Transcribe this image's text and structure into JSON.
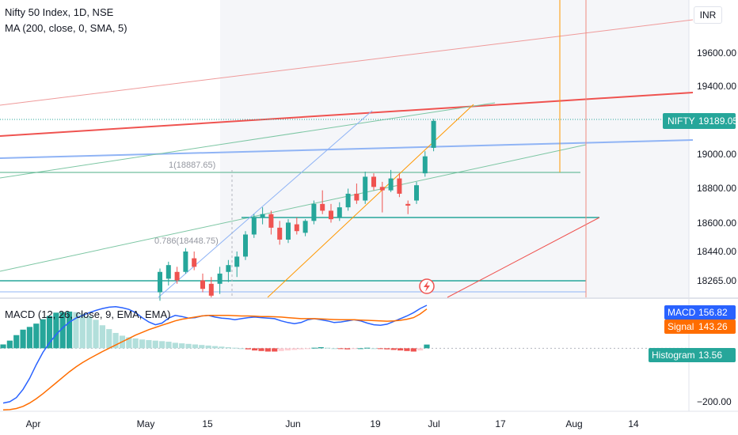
{
  "legend": {
    "symbol": "Nifty 50 Index, 1D, NSE",
    "ma": "MA (200, close, 0, SMA, 5)",
    "macd": "MACD (12, 26, close, 9, EMA, EMA)"
  },
  "currency_button": "INR",
  "price_axis": {
    "ticks": [
      "19600.00",
      "19400.00",
      "19000.00",
      "18800.00",
      "18600.00",
      "18440.00",
      "18265.00"
    ],
    "tag_label": "NIFTY",
    "tag_value": "19189.05"
  },
  "macd_axis": {
    "macd_label": "MACD",
    "macd_value": "156.82",
    "signal_label": "Signal",
    "signal_value": "143.26",
    "hist_label": "Histogram",
    "hist_value": "13.56",
    "tick": "−200.00"
  },
  "time_axis": [
    "Apr",
    "May",
    "15",
    "Jun",
    "19",
    "Jul",
    "17",
    "Aug",
    "14"
  ],
  "annotations": {
    "fib_1": "1(18887.65)",
    "fib_0786": "0.786(18448.75)"
  },
  "colors": {
    "up": "#26a69a",
    "down": "#ef5350",
    "macd": "#2962ff",
    "signal": "#ff6d00",
    "tag": "#26a69a"
  },
  "chart_data": [
    {
      "type": "candlestick",
      "title": "Nifty 50 Index, 1D, NSE",
      "ylim": [
        18150,
        19900
      ],
      "candles": [
        {
          "o": 18180,
          "h": 18320,
          "l": 18130,
          "c": 18300
        },
        {
          "o": 18260,
          "h": 18360,
          "l": 18220,
          "c": 18340
        },
        {
          "o": 18300,
          "h": 18330,
          "l": 18230,
          "c": 18250
        },
        {
          "o": 18300,
          "h": 18440,
          "l": 18290,
          "c": 18420
        },
        {
          "o": 18380,
          "h": 18420,
          "l": 18310,
          "c": 18330
        },
        {
          "o": 18250,
          "h": 18290,
          "l": 18180,
          "c": 18200
        },
        {
          "o": 18230,
          "h": 18270,
          "l": 18150,
          "c": 18160
        },
        {
          "o": 18230,
          "h": 18330,
          "l": 18170,
          "c": 18290
        },
        {
          "o": 18300,
          "h": 18370,
          "l": 18240,
          "c": 18340
        },
        {
          "o": 18330,
          "h": 18420,
          "l": 18270,
          "c": 18390
        },
        {
          "o": 18390,
          "h": 18540,
          "l": 18370,
          "c": 18520
        },
        {
          "o": 18520,
          "h": 18640,
          "l": 18500,
          "c": 18620
        },
        {
          "o": 18620,
          "h": 18680,
          "l": 18580,
          "c": 18640
        },
        {
          "o": 18640,
          "h": 18660,
          "l": 18520,
          "c": 18560
        },
        {
          "o": 18560,
          "h": 18600,
          "l": 18460,
          "c": 18490
        },
        {
          "o": 18490,
          "h": 18610,
          "l": 18470,
          "c": 18590
        },
        {
          "o": 18580,
          "h": 18620,
          "l": 18520,
          "c": 18540
        },
        {
          "o": 18530,
          "h": 18610,
          "l": 18510,
          "c": 18600
        },
        {
          "o": 18600,
          "h": 18720,
          "l": 18580,
          "c": 18700
        },
        {
          "o": 18700,
          "h": 18780,
          "l": 18640,
          "c": 18660
        },
        {
          "o": 18660,
          "h": 18700,
          "l": 18590,
          "c": 18610
        },
        {
          "o": 18620,
          "h": 18710,
          "l": 18600,
          "c": 18680
        },
        {
          "o": 18680,
          "h": 18790,
          "l": 18660,
          "c": 18760
        },
        {
          "o": 18760,
          "h": 18820,
          "l": 18700,
          "c": 18720
        },
        {
          "o": 18720,
          "h": 18890,
          "l": 18700,
          "c": 18860
        },
        {
          "o": 18860,
          "h": 18880,
          "l": 18780,
          "c": 18800
        },
        {
          "o": 18800,
          "h": 18830,
          "l": 18650,
          "c": 18780
        },
        {
          "o": 18780,
          "h": 18900,
          "l": 18770,
          "c": 18850
        },
        {
          "o": 18850,
          "h": 18880,
          "l": 18740,
          "c": 18760
        },
        {
          "o": 18700,
          "h": 18720,
          "l": 18640,
          "c": 18690
        },
        {
          "o": 18720,
          "h": 18830,
          "l": 18700,
          "c": 18810
        },
        {
          "o": 18880,
          "h": 19010,
          "l": 18860,
          "c": 18980
        },
        {
          "o": 19030,
          "h": 19200,
          "l": 19010,
          "c": 19189.05
        }
      ]
    },
    {
      "type": "bar",
      "title": "MACD (12, 26, close, 9, EMA, EMA)",
      "ylim": [
        -230,
        180
      ],
      "histogram": [
        14,
        28,
        48,
        68,
        78,
        90,
        106,
        118,
        130,
        132,
        134,
        132,
        126,
        118,
        104,
        84,
        70,
        56,
        46,
        40,
        36,
        32,
        30,
        28,
        26,
        24,
        20,
        18,
        16,
        14,
        12,
        10,
        8,
        6,
        4,
        2,
        0,
        -4,
        -8,
        -10,
        -12,
        -12,
        -10,
        -8,
        -6,
        -4,
        -2,
        2,
        4,
        2,
        0,
        -2,
        -4,
        -2,
        0,
        2,
        0,
        -2,
        -4,
        -6,
        -8,
        -10,
        -12,
        -8,
        13.56
      ],
      "series": [
        {
          "name": "MACD",
          "values": [
            -200,
            -195,
            -180,
            -150,
            -110,
            -60,
            -15,
            20,
            50,
            75,
            95,
            110,
            120,
            130,
            138,
            145,
            150,
            152,
            148,
            142,
            130,
            112,
            96,
            86,
            92,
            110,
            120,
            116,
            110,
            112,
            118,
            120,
            114,
            110,
            108,
            104,
            108,
            112,
            114,
            112,
            110,
            108,
            100,
            94,
            90,
            94,
            104,
            108,
            104,
            100,
            94,
            96,
            100,
            104,
            100,
            92,
            86,
            84,
            88,
            98,
            108,
            118,
            130,
            145,
            156.82
          ]
        },
        {
          "name": "Signal",
          "values": [
            -225,
            -224,
            -220,
            -212,
            -200,
            -184,
            -166,
            -146,
            -126,
            -106,
            -86,
            -68,
            -52,
            -38,
            -25,
            -12,
            0,
            12,
            24,
            36,
            48,
            58,
            68,
            76,
            84,
            92,
            100,
            106,
            110,
            114,
            118,
            120,
            120,
            120,
            120,
            119,
            118,
            118,
            117,
            116,
            116,
            115,
            114,
            112,
            110,
            108,
            108,
            108,
            107,
            106,
            105,
            104,
            104,
            104,
            103,
            102,
            101,
            100,
            99,
            100,
            102,
            106,
            112,
            125,
            143.26
          ]
        }
      ]
    }
  ]
}
